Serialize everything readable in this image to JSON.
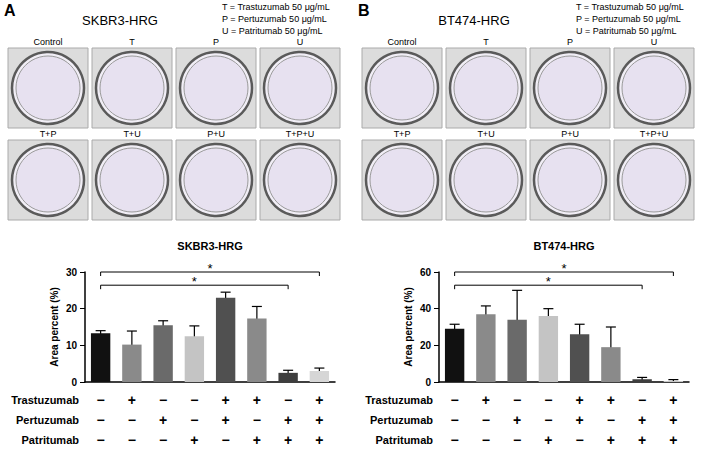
{
  "chart_data": [
    {
      "type": "bar",
      "title": "SKBR3-HRG",
      "y_label": "Area percent (%)",
      "categories": [
        null,
        null,
        null,
        null,
        null,
        null,
        null,
        null
      ],
      "values": [
        13.3,
        10.2,
        15.5,
        12.5,
        23.0,
        17.3,
        2.5,
        3.0
      ],
      "errors": [
        0.7,
        3.7,
        1.2,
        2.8,
        1.5,
        3.3,
        0.7,
        0.8
      ],
      "colors": [
        "#111111",
        "#8a8a8a",
        "#6a6a6a",
        "#c4c4c4",
        "#505050",
        "#8a8a8a",
        "#3e3e3e",
        "#d6d6d6"
      ],
      "ylim": [
        0,
        30
      ],
      "yticks": [
        0,
        10,
        20,
        30
      ],
      "grid": false,
      "significance": [
        {
          "from": 0,
          "to": 7,
          "label": "*"
        },
        {
          "from": 0,
          "to": 6,
          "label": "*"
        }
      ]
    },
    {
      "type": "bar",
      "title": "BT474-HRG",
      "y_label": "Area percent (%)",
      "categories": [
        null,
        null,
        null,
        null,
        null,
        null,
        null,
        null
      ],
      "values": [
        29.0,
        37.0,
        34.0,
        36.0,
        26.0,
        19.0,
        1.5,
        0.5
      ],
      "errors": [
        2.5,
        4.5,
        16.0,
        4.0,
        5.5,
        11.0,
        1.0,
        0.8
      ],
      "colors": [
        "#111111",
        "#8a8a8a",
        "#6a6a6a",
        "#c4c4c4",
        "#505050",
        "#8a8a8a",
        "#3e3e3e",
        "#d6d6d6"
      ],
      "ylim": [
        0,
        60
      ],
      "yticks": [
        0,
        20,
        40,
        60
      ],
      "grid": false,
      "significance": [
        {
          "from": 0,
          "to": 7,
          "label": "*"
        },
        {
          "from": 0,
          "to": 6,
          "label": "*"
        }
      ]
    }
  ],
  "panels": [
    {
      "letter": "A",
      "plate_title": "SKBR3-HRG",
      "key": [
        "T = Trastuzumab 50 μg/mL",
        "P = Pertuzumab 50 μg/mL",
        "U = Patritumab 50 μg/mL"
      ],
      "plates": [
        "Control",
        "T",
        "P",
        "U",
        "T+P",
        "T+U",
        "P+U",
        "T+P+U"
      ],
      "treatments": [
        {
          "name": "Trastuzumab",
          "signs": [
            "−",
            "+",
            "−",
            "−",
            "+",
            "+",
            "−",
            "+"
          ]
        },
        {
          "name": "Pertuzumab",
          "signs": [
            "−",
            "−",
            "+",
            "−",
            "+",
            "−",
            "+",
            "+"
          ]
        },
        {
          "name": "Patritumab",
          "signs": [
            "−",
            "−",
            "−",
            "+",
            "−",
            "+",
            "+",
            "+"
          ]
        }
      ]
    },
    {
      "letter": "B",
      "plate_title": "BT474-HRG",
      "key": [
        "T = Trastuzumab 50 μg/mL",
        "P = Pertuzumab 50 μg/mL",
        "U = Patritumab 50 μg/mL"
      ],
      "plates": [
        "Control",
        "T",
        "P",
        "U",
        "T+P",
        "T+U",
        "P+U",
        "T+P+U"
      ],
      "treatments": [
        {
          "name": "Trastuzumab",
          "signs": [
            "−",
            "+",
            "−",
            "−",
            "+",
            "+",
            "−",
            "+"
          ]
        },
        {
          "name": "Pertuzumab",
          "signs": [
            "−",
            "−",
            "+",
            "−",
            "+",
            "−",
            "+",
            "+"
          ]
        },
        {
          "name": "Patritumab",
          "signs": [
            "−",
            "−",
            "−",
            "+",
            "−",
            "+",
            "+",
            "+"
          ]
        }
      ]
    }
  ]
}
